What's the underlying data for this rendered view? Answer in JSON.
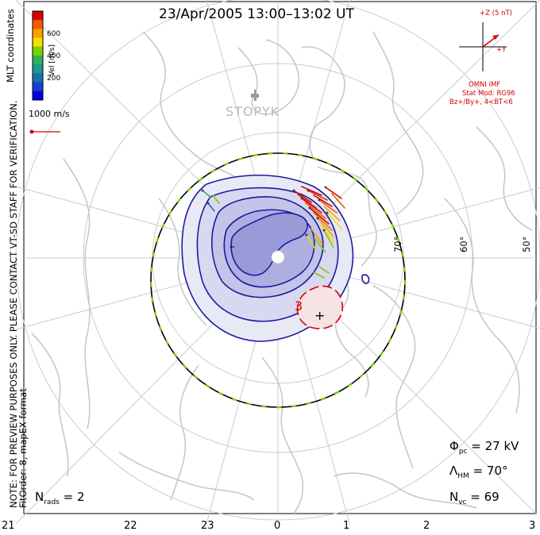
{
  "title": "23/Apr/2005 13:00–13:02 UT",
  "coordinates_label": "MLT coordinates",
  "colorbar": {
    "label": "Vel [m/s]",
    "ticks": [
      "600",
      "400",
      "200"
    ],
    "colors": [
      "#d90000",
      "#f05a00",
      "#f7a000",
      "#f2e000",
      "#7ccf00",
      "#2fb05a",
      "#1a9a8a",
      "#1a6fa8",
      "#1a3fd0",
      "#0000e0"
    ]
  },
  "reference_vector_label": "1000 m/s",
  "imf": {
    "z_label": "+Z (5 nT)",
    "y_label": "+Y",
    "source_label": "OMNI IMF",
    "stat_mod": "Stat Mod: RG96",
    "conditions": "Bz+/By+, 4<BT<6"
  },
  "station_label": "STOPYK",
  "latitude_labels": [
    "70°",
    "60°",
    "50°"
  ],
  "contour_labels": {
    "minus": "–",
    "plus": "+",
    "contour3": "3"
  },
  "notes": {
    "preview": "NOTE: FOR PREVIEW PURPOSES ONLY. PLEASE CONTACT VT-SD STAFF FOR VERIFICATION.",
    "fit": "FitOrder: 8, mapEX format"
  },
  "stats": {
    "nrads_symbol": "N",
    "nrads_sub": "rads",
    "nrads_value": "= 2",
    "phi_symbol": "Φ",
    "phi_sub": "pc",
    "phi_value": "= 27 kV",
    "lambda_symbol": "Λ",
    "lambda_sub": "HM",
    "lambda_value": "= 70°",
    "nvc_symbol": "N",
    "nvc_sub": "vc",
    "nvc_value": "= 69"
  },
  "mlt_axis": [
    "21",
    "22",
    "23",
    "0",
    "1",
    "2",
    "3"
  ],
  "colors": {
    "negative_contour": "#1a1aa0",
    "positive_contour": "#d40000",
    "grid": "#cccccc",
    "coast": "#c8c8c8",
    "imf": "#d40000"
  }
}
